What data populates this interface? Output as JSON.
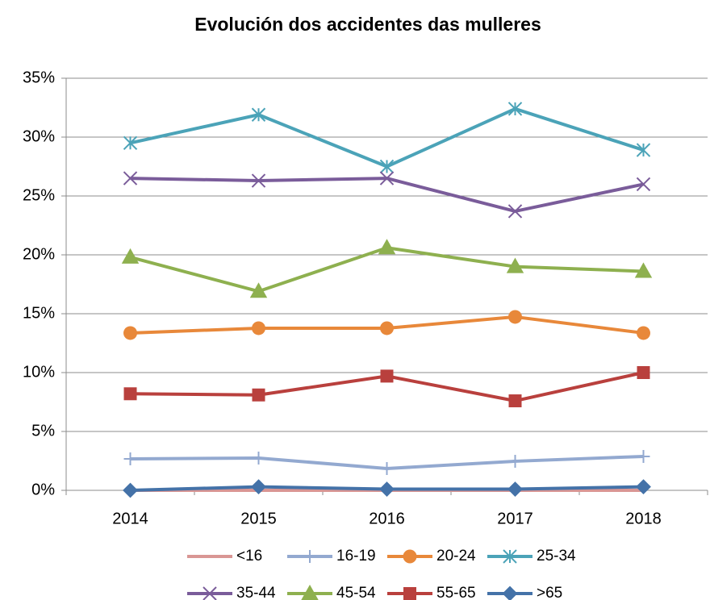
{
  "chart_data": {
    "type": "line",
    "title": "Evolución dos accidentes das mulleres",
    "categories": [
      "2014",
      "2015",
      "2016",
      "2017",
      "2018"
    ],
    "ylim": [
      0,
      35
    ],
    "yticks": [
      {
        "value": 0,
        "label": "0%"
      },
      {
        "value": 5,
        "label": "5%"
      },
      {
        "value": 10,
        "label": "10%"
      },
      {
        "value": 15,
        "label": "15%"
      },
      {
        "value": 20,
        "label": "20%"
      },
      {
        "value": 25,
        "label": "25%"
      },
      {
        "value": 30,
        "label": "30%"
      },
      {
        "value": 35,
        "label": "35%"
      }
    ],
    "grid": true,
    "legend": "bottom",
    "series": [
      {
        "name": "<16",
        "color": "#d99694",
        "marker": "none",
        "values": [
          0,
          0,
          0,
          0,
          0
        ]
      },
      {
        "name": "16-19",
        "color": "#93a9d0",
        "marker": "plus",
        "values": [
          2.67,
          2.74,
          1.85,
          2.47,
          2.88
        ]
      },
      {
        "name": "20-24",
        "color": "#e8883a",
        "marker": "circle",
        "values": [
          13.36,
          13.77,
          13.77,
          14.73,
          13.36
        ]
      },
      {
        "name": "25-34",
        "color": "#4ba3b8",
        "marker": "asterisk",
        "values": [
          29.5,
          31.9,
          27.5,
          32.4,
          28.9
        ]
      },
      {
        "name": "35-44",
        "color": "#7a5c9a",
        "marker": "cross",
        "values": [
          26.5,
          26.3,
          26.5,
          23.7,
          26.0
        ]
      },
      {
        "name": "45-54",
        "color": "#8eb04f",
        "marker": "triangle",
        "values": [
          19.8,
          16.9,
          20.6,
          19.0,
          18.6
        ]
      },
      {
        "name": "55-65",
        "color": "#b9403d",
        "marker": "square",
        "values": [
          8.2,
          8.1,
          9.7,
          7.6,
          10.0
        ]
      },
      {
        "name": ">65",
        "color": "#4472a8",
        "marker": "diamond",
        "values": [
          0,
          0.3,
          0.1,
          0.1,
          0.3
        ]
      }
    ]
  }
}
